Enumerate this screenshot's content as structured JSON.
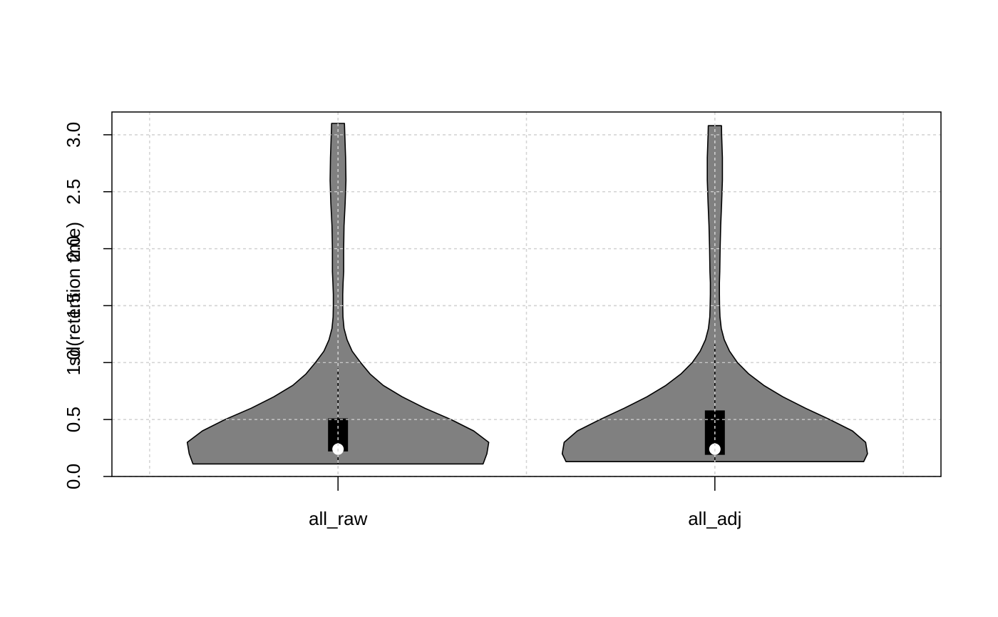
{
  "chart_data": {
    "type": "violin",
    "ylabel": "sd(retention time)",
    "ylim": [
      0,
      3.2
    ],
    "y_ticks": [
      "0.0",
      "0.5",
      "1.0",
      "1.5",
      "2.0",
      "2.5",
      "3.0"
    ],
    "y_tick_values": [
      0,
      0.5,
      1.0,
      1.5,
      2.0,
      2.5,
      3.0
    ],
    "grid": true,
    "colors": {
      "violin_fill": "#808080",
      "box_fill": "#000000",
      "median_point": "#ffffff",
      "grid": "#d3d3d3"
    },
    "categories": [
      "all_raw",
      "all_adj"
    ],
    "series": [
      {
        "category": "all_raw",
        "min": 0.11,
        "q1": 0.22,
        "median": 0.24,
        "q3": 0.51,
        "whisker_high": 0.95,
        "max": 3.1,
        "density": [
          [
            0.11,
            0.77
          ],
          [
            0.2,
            0.79
          ],
          [
            0.3,
            0.8
          ],
          [
            0.4,
            0.72
          ],
          [
            0.5,
            0.6
          ],
          [
            0.6,
            0.46
          ],
          [
            0.7,
            0.34
          ],
          [
            0.8,
            0.24
          ],
          [
            0.9,
            0.17
          ],
          [
            1.0,
            0.12
          ],
          [
            1.1,
            0.075
          ],
          [
            1.2,
            0.048
          ],
          [
            1.3,
            0.032
          ],
          [
            1.4,
            0.026
          ],
          [
            1.5,
            0.025
          ],
          [
            1.6,
            0.025
          ],
          [
            1.7,
            0.027
          ],
          [
            1.8,
            0.03
          ],
          [
            2.0,
            0.03
          ],
          [
            2.2,
            0.032
          ],
          [
            2.4,
            0.038
          ],
          [
            2.6,
            0.042
          ],
          [
            2.8,
            0.04
          ],
          [
            3.0,
            0.036
          ],
          [
            3.1,
            0.034
          ]
        ]
      },
      {
        "category": "all_adj",
        "min": 0.13,
        "q1": 0.19,
        "median": 0.24,
        "q3": 0.58,
        "whisker_high": 1.16,
        "max": 3.08,
        "density": [
          [
            0.13,
            0.79
          ],
          [
            0.2,
            0.81
          ],
          [
            0.3,
            0.8
          ],
          [
            0.4,
            0.73
          ],
          [
            0.5,
            0.61
          ],
          [
            0.6,
            0.48
          ],
          [
            0.7,
            0.36
          ],
          [
            0.8,
            0.26
          ],
          [
            0.9,
            0.18
          ],
          [
            1.0,
            0.12
          ],
          [
            1.1,
            0.078
          ],
          [
            1.2,
            0.05
          ],
          [
            1.3,
            0.034
          ],
          [
            1.4,
            0.027
          ],
          [
            1.5,
            0.025
          ],
          [
            1.6,
            0.024
          ],
          [
            1.7,
            0.024
          ],
          [
            1.8,
            0.026
          ],
          [
            2.0,
            0.028
          ],
          [
            2.2,
            0.031
          ],
          [
            2.4,
            0.036
          ],
          [
            2.6,
            0.04
          ],
          [
            2.8,
            0.04
          ],
          [
            3.0,
            0.036
          ],
          [
            3.08,
            0.035
          ]
        ]
      }
    ]
  }
}
